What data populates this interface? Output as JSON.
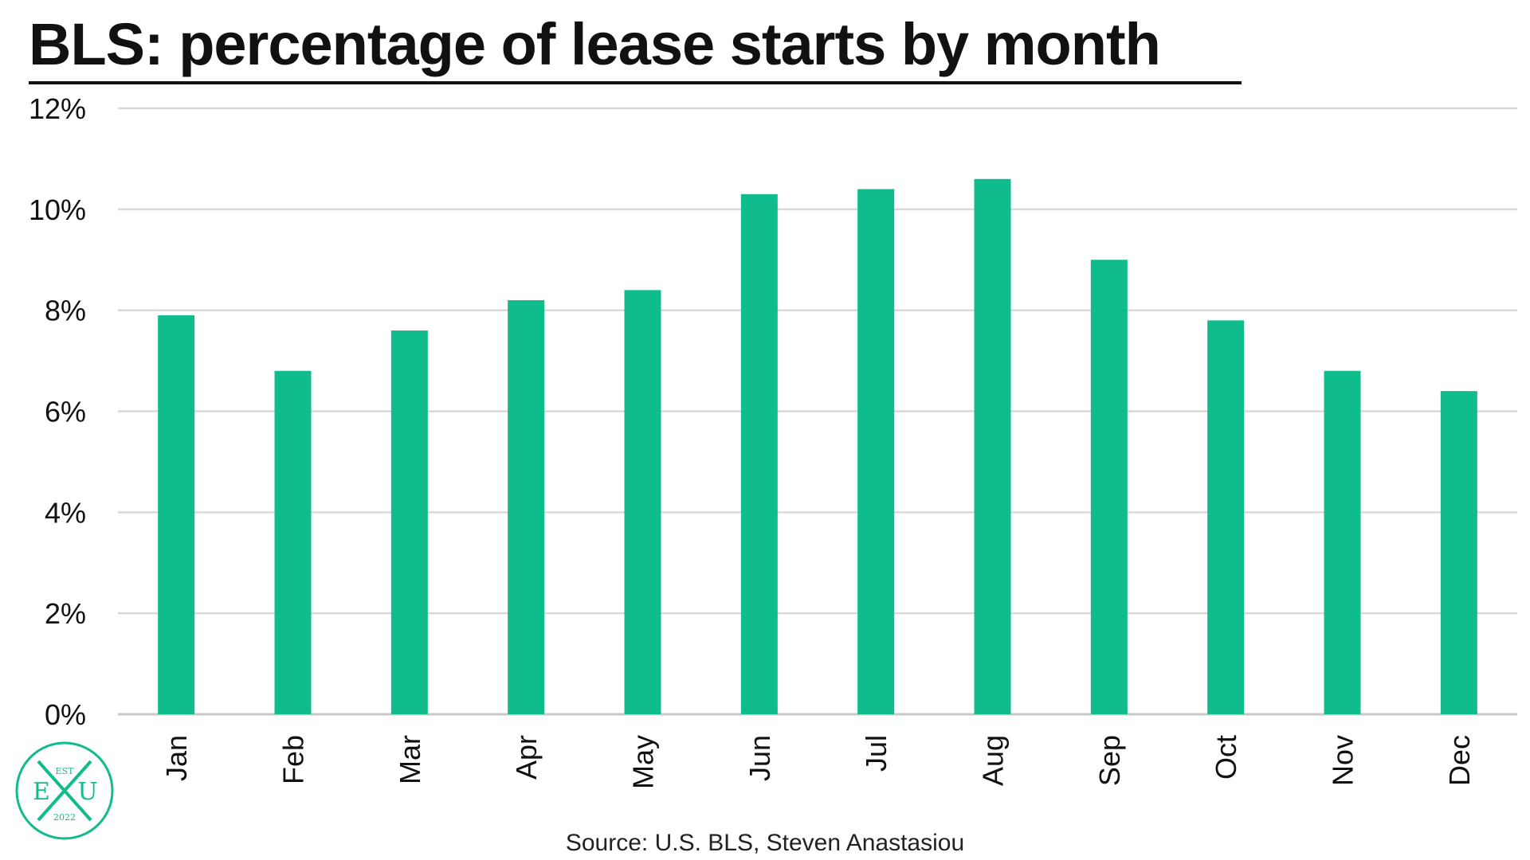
{
  "header": {
    "title": "BLS: percentage of lease starts by month"
  },
  "footer": {
    "source": "Source: U.S. BLS, Steven Anastasiou"
  },
  "logo": {
    "top_text": "EST",
    "left_letter": "E",
    "right_letter": "U",
    "year": "2022"
  },
  "colors": {
    "bar": "#10BC8C",
    "grid": "#D9D9D9",
    "axis": "#C8C8C8",
    "logo": "#10BC8C"
  },
  "chart_data": {
    "type": "bar",
    "title": "BLS: percentage of lease starts by month",
    "xlabel": "",
    "ylabel": "",
    "categories": [
      "Jan",
      "Feb",
      "Mar",
      "Apr",
      "May",
      "Jun",
      "Jul",
      "Aug",
      "Sep",
      "Oct",
      "Nov",
      "Dec"
    ],
    "values": [
      7.9,
      6.8,
      7.6,
      8.2,
      8.4,
      10.3,
      10.4,
      10.6,
      9.0,
      7.8,
      6.8,
      6.4
    ],
    "value_unit": "%",
    "ylim": [
      0,
      12
    ],
    "yticks": [
      0,
      2,
      4,
      6,
      8,
      10,
      12
    ],
    "ytick_labels": [
      "0%",
      "2%",
      "4%",
      "6%",
      "8%",
      "10%",
      "12%"
    ],
    "grid": true,
    "legend": "none"
  }
}
